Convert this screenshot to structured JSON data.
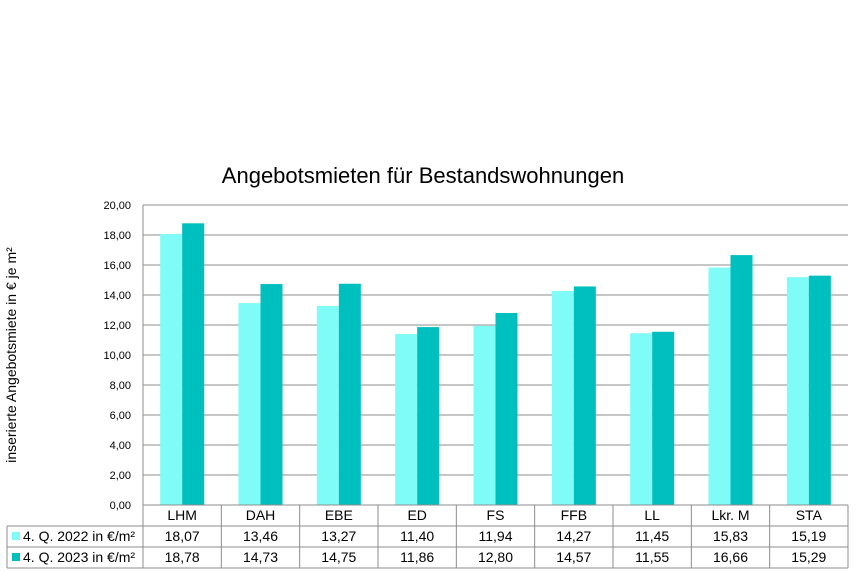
{
  "chart_data": {
    "type": "bar",
    "title": "Angebotsmieten für Bestandswohnungen",
    "ylabel": "inserierte Angebotsmiete in € je m²",
    "xlabel": "",
    "ylim": [
      0,
      20
    ],
    "ytick_step": 2,
    "ytick_labels": [
      "0,00",
      "2,00",
      "4,00",
      "6,00",
      "8,00",
      "10,00",
      "12,00",
      "14,00",
      "16,00",
      "18,00",
      "20,00"
    ],
    "grid": true,
    "legend": "data-table",
    "categories": [
      "LHM",
      "DAH",
      "EBE",
      "ED",
      "FS",
      "FFB",
      "LL",
      "Lkr. M",
      "STA"
    ],
    "series": [
      {
        "name": "4. Q. 2022 in €/m²",
        "color": "#7ffbf8",
        "values": [
          18.07,
          13.46,
          13.27,
          11.4,
          11.94,
          14.27,
          11.45,
          15.83,
          15.19
        ],
        "labels": [
          "18,07",
          "13,46",
          "13,27",
          "11,40",
          "11,94",
          "14,27",
          "11,45",
          "15,83",
          "15,19"
        ]
      },
      {
        "name": "4. Q. 2023 in €/m²",
        "color": "#00bfbf",
        "values": [
          18.78,
          14.73,
          14.75,
          11.86,
          12.8,
          14.57,
          11.55,
          16.66,
          15.29
        ],
        "labels": [
          "18,78",
          "14,73",
          "14,75",
          "11,86",
          "12,80",
          "14,57",
          "11,55",
          "16,66",
          "15,29"
        ]
      }
    ]
  }
}
